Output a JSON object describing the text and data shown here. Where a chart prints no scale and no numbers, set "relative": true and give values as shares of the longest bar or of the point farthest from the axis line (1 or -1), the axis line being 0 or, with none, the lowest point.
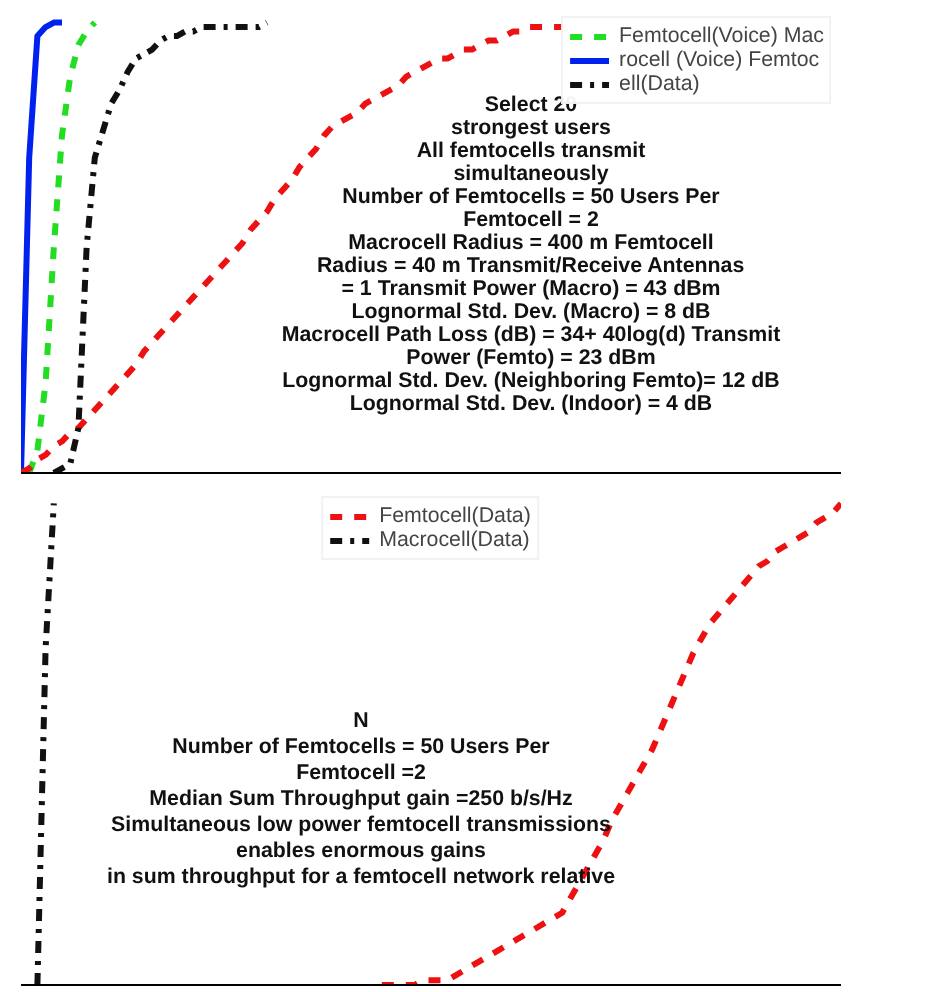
{
  "chart_data": [
    {
      "type": "line",
      "relative": true,
      "legend": "top right",
      "marker": "none",
      "categories": [
        null,
        null,
        null,
        null,
        null,
        null,
        null,
        null,
        null,
        null,
        null,
        null,
        null,
        null,
        null,
        null,
        null,
        null,
        null,
        null,
        null,
        null,
        null,
        null,
        null,
        null,
        null,
        null,
        null,
        null,
        null,
        null,
        null,
        null,
        null,
        null,
        null,
        null,
        null,
        null,
        null,
        null,
        null,
        null,
        null,
        null,
        null,
        null,
        null,
        null,
        null,
        null,
        null,
        null,
        null,
        null,
        null,
        null,
        null,
        null,
        null,
        null,
        null,
        null,
        null,
        null,
        null,
        null,
        null,
        null,
        null,
        null,
        null,
        null,
        null,
        null,
        null,
        null,
        null,
        null,
        null,
        null,
        null,
        null,
        null,
        null,
        null,
        null,
        null,
        null,
        null,
        null,
        null,
        null,
        null,
        null,
        null,
        null,
        null,
        null,
        null
      ],
      "series": [
        {
          "name": "Femtocell(Voice) Mac",
          "color": "#22dd22",
          "line_style": "dashed",
          "values": [
            null,
            0,
            0.05,
            0.2,
            0.5,
            0.75,
            0.88,
            0.95,
            0.98,
            1,
            null,
            null,
            null,
            null,
            null,
            null,
            null,
            null,
            null,
            null,
            null,
            null,
            null,
            null,
            null,
            null,
            null,
            null,
            null,
            null,
            null,
            null,
            null,
            null,
            null,
            null,
            null,
            null,
            null,
            null,
            null,
            null,
            null,
            null,
            null,
            null,
            null,
            null,
            null,
            null,
            null,
            null,
            null,
            null,
            null,
            null,
            null,
            null,
            null,
            null,
            null,
            null,
            null,
            null,
            null,
            null,
            null,
            null,
            null,
            null,
            null,
            null,
            null,
            null,
            null,
            null,
            null,
            null,
            null,
            null,
            null,
            null,
            null,
            null,
            null,
            null,
            null,
            null,
            null,
            null,
            null,
            null,
            null,
            null,
            null,
            null,
            null,
            null,
            null,
            null,
            null
          ]
        },
        {
          "name": "rocell (Voice) Femtoc",
          "color": "#0022ee",
          "line_style": "solid",
          "values": [
            0,
            0.7,
            0.97,
            0.99,
            1,
            1,
            null,
            null,
            null,
            null,
            null,
            null,
            null,
            null,
            null,
            null,
            null,
            null,
            null,
            null,
            null,
            null,
            null,
            null,
            null,
            null,
            null,
            null,
            null,
            null,
            null,
            null,
            null,
            null,
            null,
            null,
            null,
            null,
            null,
            null,
            null,
            null,
            null,
            null,
            null,
            null,
            null,
            null,
            null,
            null,
            null,
            null,
            null,
            null,
            null,
            null,
            null,
            null,
            null,
            null,
            null,
            null,
            null,
            null,
            null,
            null,
            null,
            null,
            null,
            null,
            null,
            null,
            null,
            null,
            null,
            null,
            null,
            null,
            null,
            null,
            null,
            null,
            null,
            null,
            null,
            null,
            null,
            null,
            null,
            null,
            null,
            null,
            null,
            null,
            null,
            null,
            null,
            null,
            null,
            null,
            null
          ]
        },
        {
          "color": "#ee1111",
          "line_style": "dashed",
          "values": [
            0,
            0.01,
            0.03,
            0.04,
            0.06,
            0.07,
            0.09,
            0.1,
            0.12,
            0.14,
            0.16,
            0.18,
            0.2,
            0.22,
            0.24,
            0.27,
            0.29,
            0.31,
            0.33,
            0.35,
            0.37,
            0.39,
            0.41,
            0.43,
            0.45,
            0.47,
            0.49,
            0.51,
            0.54,
            0.56,
            0.58,
            0.61,
            0.63,
            0.65,
            0.68,
            0.7,
            0.72,
            0.75,
            0.77,
            0.78,
            0.79,
            0.8,
            0.82,
            0.83,
            0.84,
            0.85,
            0.86,
            0.88,
            0.89,
            0.9,
            0.91,
            0.92,
            0.92,
            0.93,
            0.94,
            0.94,
            0.95,
            0.96,
            0.96,
            0.97,
            0.98,
            0.98,
            0.99,
            0.99,
            0.99,
            0.99,
            0.99,
            null,
            null,
            null,
            null,
            null,
            null,
            null,
            null,
            null,
            null,
            null,
            null,
            null,
            null,
            null,
            null,
            null,
            null,
            null,
            null,
            null,
            null,
            null,
            null,
            null,
            null,
            null,
            null,
            null,
            null,
            null,
            null,
            null,
            null
          ]
        },
        {
          "name": "ell(Data)",
          "color": "#111111",
          "line_style": "dashdot",
          "values": [
            null,
            null,
            null,
            null,
            0,
            0.01,
            0.02,
            0.1,
            0.5,
            0.7,
            0.76,
            0.82,
            0.85,
            0.89,
            0.92,
            0.93,
            0.94,
            0.96,
            0.97,
            0.97,
            0.98,
            0.98,
            0.99,
            0.99,
            0.99,
            0.99,
            0.99,
            0.99,
            0.99,
            0.99,
            1,
            null,
            null,
            null,
            null,
            null,
            null,
            null,
            null,
            null,
            null,
            null,
            null,
            null,
            null,
            null,
            null,
            null,
            null,
            null,
            null,
            null,
            null,
            null,
            null,
            null,
            null,
            null,
            null,
            null,
            null,
            null,
            null,
            null,
            null,
            null,
            null,
            null,
            null,
            null,
            null,
            null,
            null,
            null,
            null,
            null,
            null,
            null,
            null,
            null,
            null,
            null,
            null,
            null,
            null,
            null,
            null,
            null,
            null,
            null,
            null,
            null,
            null,
            null,
            null,
            null,
            null,
            null,
            null,
            null,
            null
          ]
        }
      ],
      "annotations": [
        "Select 20",
        "strongest users",
        "All femtocells transmit",
        "simultaneously",
        "Number of Femtocells = 50 Users Per",
        "Femtocell = 2",
        "Macrocell Radius = 400 m Femtocell",
        "Radius = 40 m Transmit/Receive Antennas",
        "= 1 Transmit Power (Macro) = 43 dBm",
        "Lognormal Std. Dev. (Macro) = 8 dB",
        "Macrocell Path Loss (dB) = 34+ 40log(d) Transmit",
        "Power (Femto) = 23 dBm",
        "Lognormal Std. Dev. (Neighboring Femto)= 12 dB",
        "Lognormal Std. Dev. (Indoor) = 4 dB"
      ]
    },
    {
      "type": "line",
      "relative": true,
      "legend": "top",
      "marker": "none",
      "categories": [
        null,
        null,
        null,
        null,
        null,
        null,
        null,
        null,
        null,
        null,
        null,
        null,
        null,
        null,
        null,
        null,
        null,
        null,
        null,
        null,
        null,
        null,
        null,
        null,
        null,
        null,
        null,
        null,
        null,
        null,
        null,
        null,
        null,
        null,
        null,
        null,
        null,
        null,
        null,
        null,
        null,
        null,
        null,
        null,
        null,
        null,
        null,
        null,
        null,
        null,
        null,
        null,
        null,
        null,
        null,
        null,
        null,
        null,
        null,
        null,
        null,
        null,
        null,
        null,
        null,
        null,
        null,
        null,
        null,
        null,
        null,
        null,
        null,
        null,
        null,
        null,
        null,
        null,
        null,
        null,
        null,
        null,
        null,
        null,
        null,
        null,
        null,
        null,
        null,
        null,
        null,
        null,
        null,
        null,
        null,
        null,
        null,
        null,
        null,
        null,
        null
      ],
      "series": [
        {
          "name": "Femtocell(Data)",
          "color": "#ee1111",
          "line_style": "dashed",
          "values": [
            null,
            null,
            null,
            null,
            null,
            null,
            null,
            null,
            null,
            null,
            null,
            null,
            null,
            null,
            null,
            null,
            null,
            null,
            null,
            null,
            null,
            null,
            null,
            null,
            null,
            null,
            null,
            null,
            null,
            null,
            null,
            null,
            null,
            null,
            null,
            null,
            null,
            null,
            null,
            null,
            null,
            null,
            null,
            null,
            0,
            0,
            0,
            0,
            0,
            0.01,
            0.01,
            0.01,
            0.01,
            0.02,
            0.03,
            0.04,
            0.05,
            0.06,
            0.07,
            0.08,
            0.09,
            0.1,
            0.11,
            0.12,
            0.13,
            0.14,
            0.15,
            0.18,
            0.21,
            0.24,
            0.27,
            0.3,
            0.34,
            0.37,
            0.4,
            0.43,
            0.46,
            0.49,
            0.53,
            0.57,
            0.61,
            0.65,
            0.69,
            0.72,
            0.75,
            0.77,
            0.79,
            0.81,
            0.83,
            0.85,
            0.87,
            0.88,
            0.9,
            0.91,
            0.92,
            0.93,
            0.94,
            0.96,
            0.97,
            0.98,
            1
          ]
        },
        {
          "name": "Macrocell(Data)",
          "color": "#111111",
          "line_style": "dashdot",
          "values": [
            null,
            null,
            0,
            0.7,
            1,
            null,
            null,
            null,
            null,
            null,
            null,
            null,
            null,
            null,
            null,
            null,
            null,
            null,
            null,
            null,
            null,
            null,
            null,
            null,
            null,
            null,
            null,
            null,
            null,
            null,
            null,
            null,
            null,
            null,
            null,
            null,
            null,
            null,
            null,
            null,
            null,
            null,
            null,
            null,
            null,
            null,
            null,
            null,
            null,
            null,
            null,
            null,
            null,
            null,
            null,
            null,
            null,
            null,
            null,
            null,
            null,
            null,
            null,
            null,
            null,
            null,
            null,
            null,
            null,
            null,
            null,
            null,
            null,
            null,
            null,
            null,
            null,
            null,
            null,
            null,
            null,
            null,
            null,
            null,
            null,
            null,
            null,
            null,
            null,
            null,
            null,
            null,
            null,
            null,
            null,
            null,
            null,
            null,
            null,
            null,
            null
          ]
        }
      ],
      "annotations": [
        "N",
        "Number of Femtocells = 50 Users Per",
        "Femtocell =2",
        "Median Sum Throughput gain =250 b/s/Hz",
        "Simultaneous low power femtocell transmissions",
        "enables enormous gains",
        "in sum throughput for a femtocell network relative"
      ]
    }
  ]
}
